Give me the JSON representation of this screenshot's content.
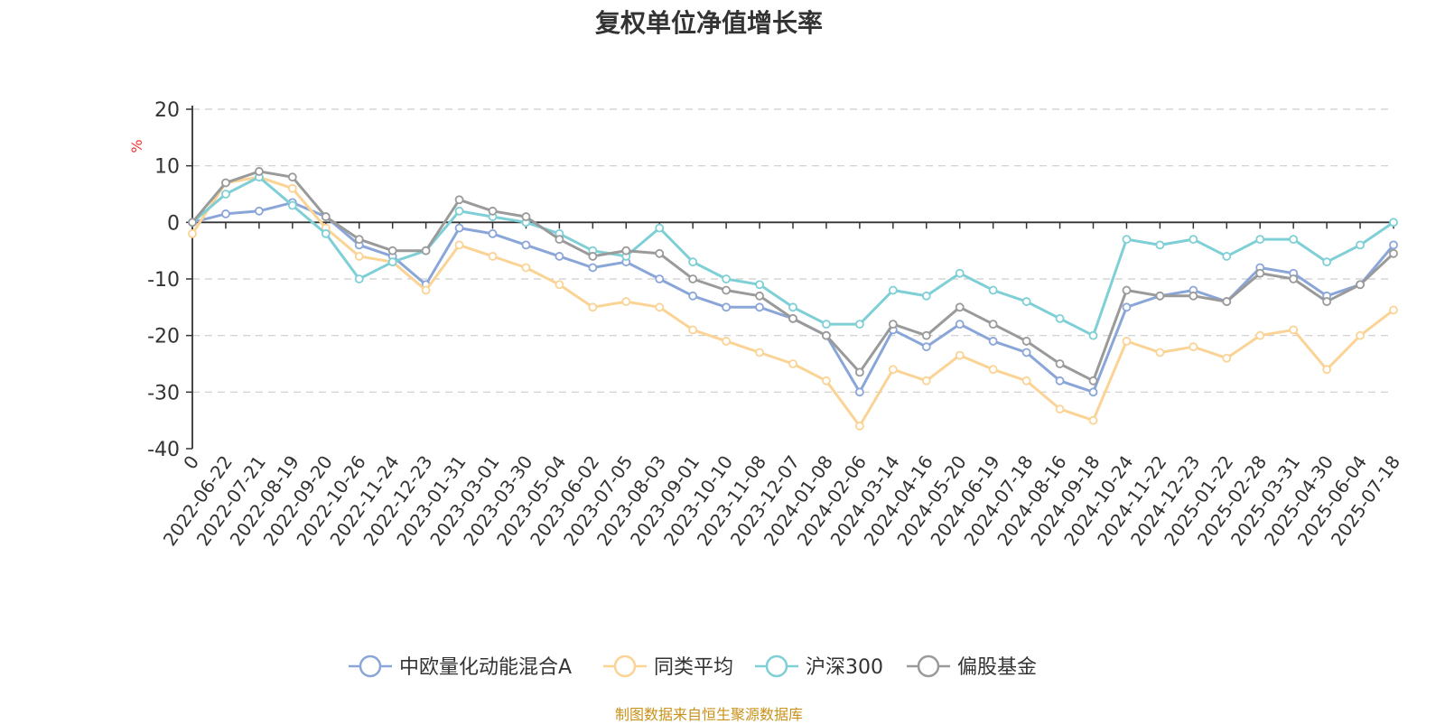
{
  "title": "复权单位净值增长率",
  "source_note": "制图数据来自恒生聚源数据库",
  "chart_data": {
    "type": "line",
    "title": "复权单位净值增长率",
    "ylabel": "%",
    "xlabel": "",
    "ylim": [
      -40,
      20
    ],
    "yticks": [
      20,
      10,
      0,
      -10,
      -20,
      -30,
      -40
    ],
    "grid": true,
    "legend_position": "bottom-center",
    "x_tick_labels": [
      "0",
      "2022-06-22",
      "2022-07-21",
      "2022-08-19",
      "2022-09-20",
      "2022-10-26",
      "2022-11-24",
      "2022-12-23",
      "2023-01-31",
      "2023-03-01",
      "2023-03-30",
      "2023-05-04",
      "2023-06-02",
      "2023-07-05",
      "2023-08-03",
      "2023-09-01",
      "2023-10-10",
      "2023-11-08",
      "2023-12-07",
      "2024-01-08",
      "2024-02-06",
      "2024-03-14",
      "2024-04-16",
      "2024-05-20",
      "2024-06-19",
      "2024-07-18",
      "2024-08-16",
      "2024-09-18",
      "2024-10-24",
      "2024-11-22",
      "2024-12-23",
      "2025-01-22",
      "2025-02-28",
      "2025-03-31",
      "2025-04-30",
      "2025-06-04",
      "2025-07-18"
    ],
    "series": [
      {
        "name": "中欧量化动能混合A",
        "color": "#8aa6d8",
        "values": [
          0,
          1.5,
          2,
          3.5,
          1,
          -4,
          -6,
          -11,
          -1,
          -2,
          -4,
          -6,
          -8,
          -7,
          -10,
          -13,
          -15,
          -15,
          -17,
          -20,
          -30,
          -19,
          -22,
          -18,
          -21,
          -23,
          -28,
          -30,
          -15,
          -13,
          -12,
          -14,
          -8,
          -9,
          -13,
          -11,
          -4
        ]
      },
      {
        "name": "同类平均",
        "color": "#fad395",
        "values": [
          -2,
          7,
          8,
          6,
          -1,
          -6,
          -7,
          -12,
          -4,
          -6,
          -8,
          -11,
          -15,
          -14,
          -15,
          -19,
          -21,
          -23,
          -25,
          -28,
          -36,
          -26,
          -28,
          -23.5,
          -26,
          -28,
          -33,
          -35,
          -21,
          -23,
          -22,
          -24,
          -20,
          -19,
          -26,
          -20,
          -15.5
        ]
      },
      {
        "name": "沪深300",
        "color": "#7ecfd6",
        "values": [
          0,
          5,
          8,
          3,
          -2,
          -10,
          -7,
          -5,
          2,
          1,
          0,
          -2,
          -5,
          -6,
          -1,
          -7,
          -10,
          -11,
          -15,
          -18,
          -18,
          -12,
          -13,
          -9,
          -12,
          -14,
          -17,
          -20,
          -3,
          -4,
          -3,
          -6,
          -3,
          -3,
          -7,
          -4,
          0
        ]
      },
      {
        "name": "偏股基金",
        "color": "#9a9a9a",
        "values": [
          0,
          7,
          9,
          8,
          1,
          -3,
          -5,
          -5,
          4,
          2,
          1,
          -3,
          -6,
          -5,
          -5.5,
          -10,
          -12,
          -13,
          -17,
          -20,
          -26.5,
          -18,
          -20,
          -15,
          -18,
          -21,
          -25,
          -28,
          -12,
          -13,
          -13,
          -14,
          -9,
          -10,
          -14,
          -11,
          -5.5
        ]
      }
    ]
  }
}
